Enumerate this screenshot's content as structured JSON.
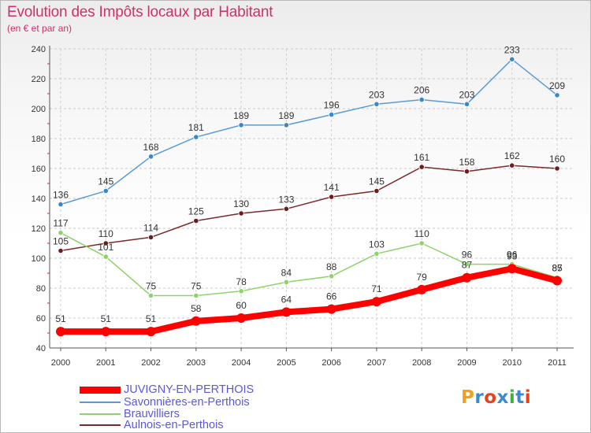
{
  "header": {
    "title": "Evolution des Impôts locaux par Habitant",
    "subtitle": "(en € et par an)"
  },
  "chart_data": {
    "type": "line",
    "title": "Evolution des Impôts locaux par Habitant",
    "subtitle": "(en € et par an)",
    "xlabel": "",
    "ylabel": "",
    "x": [
      "2000",
      "2001",
      "2002",
      "2003",
      "2004",
      "2005",
      "2006",
      "2007",
      "2008",
      "2009",
      "2010",
      "2011"
    ],
    "ylim": [
      40,
      240
    ],
    "yticks": [
      "40",
      "60",
      "80",
      "100",
      "120",
      "140",
      "160",
      "180",
      "200",
      "220",
      "240"
    ],
    "grid": "y-dashed",
    "legend_position": "bottom-left",
    "series": [
      {
        "name": "Savonnières-en-Perthois",
        "color": "#5a9bd4",
        "point_color": "#3b86c8",
        "emphasis": false,
        "values": [
          136,
          145,
          168,
          181,
          189,
          189,
          196,
          203,
          206,
          203,
          233,
          209
        ]
      },
      {
        "name": "Aulnois-en-Perthois",
        "color": "#7a2a2a",
        "point_color": "#6b1c1c",
        "emphasis": false,
        "values": [
          105,
          110,
          114,
          125,
          130,
          133,
          141,
          145,
          161,
          158,
          162,
          160
        ]
      },
      {
        "name": "Brauvilliers",
        "color": "#8ed36a",
        "point_color": "#8ed36a",
        "emphasis": false,
        "values": [
          117,
          101,
          75,
          75,
          78,
          84,
          88,
          103,
          110,
          96,
          96,
          87
        ]
      },
      {
        "name": "JUVIGNY-EN-PERTHOIS",
        "color": "#ff0000",
        "point_color": "#ff0000",
        "emphasis": true,
        "values": [
          51,
          51,
          51,
          58,
          60,
          64,
          66,
          71,
          79,
          87,
          93,
          85
        ]
      }
    ],
    "legend_order": [
      "JUVIGNY-EN-PERTHOIS",
      "Savonnières-en-Perthois",
      "Brauvilliers",
      "Aulnois-en-Perthois"
    ]
  },
  "legend": {
    "items": [
      {
        "label": "JUVIGNY-EN-PERTHOIS",
        "color": "#ff0000"
      },
      {
        "label": "Savonnières-en-Perthois",
        "color": "#5a9bd4"
      },
      {
        "label": "Brauvilliers",
        "color": "#8ed36a"
      },
      {
        "label": "Aulnois-en-Perthois",
        "color": "#7a2a2a"
      }
    ]
  },
  "logo": {
    "text": "Proxiti",
    "colors": [
      "#f0a020",
      "#3a8ad0",
      "#e8401c",
      "#3a8ad0",
      "#40b040",
      "#3a8ad0",
      "#e8401c"
    ]
  }
}
